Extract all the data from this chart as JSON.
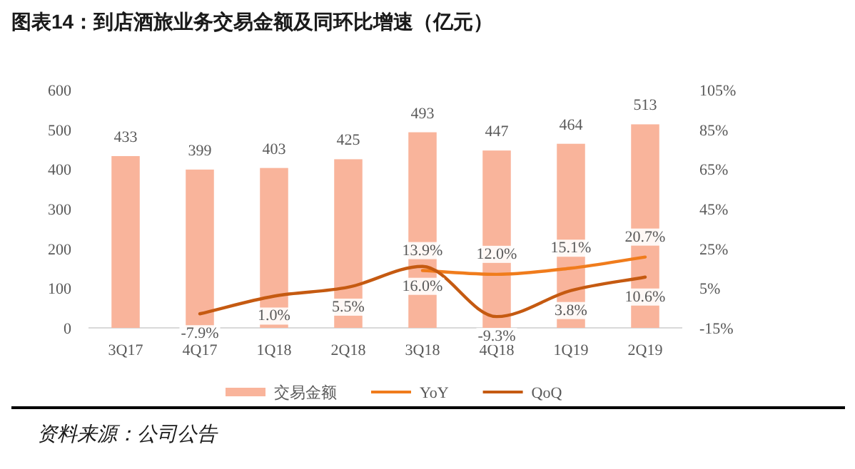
{
  "chart_data": {
    "type": "bar",
    "title": "图表14：到店酒旅业务交易金额及同环比增速（亿元）",
    "categories": [
      "3Q17",
      "4Q17",
      "1Q18",
      "2Q18",
      "3Q18",
      "4Q18",
      "1Q19",
      "2Q19"
    ],
    "series": [
      {
        "name": "交易金额",
        "color": "#f9b49b",
        "values": [
          433,
          399,
          403,
          425,
          493,
          447,
          464,
          513
        ],
        "value_labels": [
          "433",
          "399",
          "403",
          "425",
          "493",
          "447",
          "464",
          "513"
        ]
      },
      {
        "name": "YoY",
        "type": "line",
        "axis": "y2",
        "color": "#f07c1c",
        "values": [
          null,
          null,
          null,
          null,
          13.9,
          12.0,
          15.1,
          20.7
        ],
        "value_labels": [
          null,
          null,
          null,
          null,
          "13.9%",
          "12.0%",
          "15.1%",
          "20.7%"
        ]
      },
      {
        "name": "QoQ",
        "type": "line",
        "axis": "y2",
        "color": "#c55a11",
        "values": [
          null,
          -7.9,
          1.0,
          5.5,
          16.0,
          -9.3,
          3.8,
          10.6
        ],
        "value_labels": [
          null,
          "-7.9%",
          "1.0%",
          "5.5%",
          "16.0%",
          "-9.3%",
          "3.8%",
          "10.6%"
        ]
      }
    ],
    "ylim": [
      0,
      600
    ],
    "yticks": [
      0,
      100,
      200,
      300,
      400,
      500,
      600
    ],
    "y2lim": [
      -15,
      105
    ],
    "y2ticks": [
      {
        "value": -15,
        "label": "-15%"
      },
      {
        "value": 5,
        "label": "5%"
      },
      {
        "value": 25,
        "label": "25%"
      },
      {
        "value": 45,
        "label": "45%"
      },
      {
        "value": 65,
        "label": "65%"
      },
      {
        "value": 85,
        "label": "85%"
      },
      {
        "value": 105,
        "label": "105%"
      }
    ],
    "legend": "bottom",
    "grid": false,
    "annotations": [
      "资料来源：公司公告"
    ]
  }
}
